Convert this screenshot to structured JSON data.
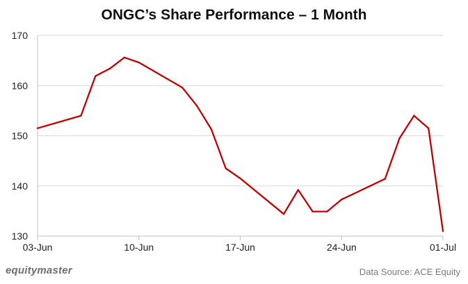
{
  "colors": {
    "line": "#c00000",
    "grid": "#d9d9d9",
    "axis": "#bfbfbf",
    "brand": "#6e6e6e",
    "source": "#7a7a7a"
  },
  "footer": {
    "brand": "equitymaster",
    "source": "Data Source: ACE Equity"
  },
  "chart_data": {
    "type": "line",
    "title": "ONGC’s Share Performance – 1 Month",
    "xlabel": "",
    "ylabel": "",
    "ylim": [
      130,
      170
    ],
    "yticks": [
      130,
      140,
      150,
      160,
      170
    ],
    "x_start": "03-Jun",
    "x_end": "01-Jul",
    "x_ticks": [
      {
        "label": "03-Jun",
        "day": 0
      },
      {
        "label": "10-Jun",
        "day": 7
      },
      {
        "label": "17-Jun",
        "day": 14
      },
      {
        "label": "24-Jun",
        "day": 21
      },
      {
        "label": "01-Jul",
        "day": 28
      }
    ],
    "grid": "horizontal",
    "legend": "none",
    "series": [
      {
        "x": [
          "03-Jun",
          "06-Jun",
          "07-Jun",
          "08-Jun",
          "09-Jun",
          "10-Jun",
          "13-Jun",
          "14-Jun",
          "15-Jun",
          "16-Jun",
          "17-Jun",
          "20-Jun",
          "21-Jun",
          "22-Jun",
          "23-Jun",
          "24-Jun",
          "27-Jun",
          "28-Jun",
          "29-Jun",
          "30-Jun",
          "01-Jul"
        ],
        "day": [
          0,
          3,
          4,
          5,
          6,
          7,
          10,
          11,
          12,
          13,
          14,
          17,
          18,
          19,
          20,
          21,
          24,
          25,
          26,
          27,
          28
        ],
        "values": [
          151.5,
          154.0,
          161.9,
          163.4,
          165.6,
          164.6,
          159.6,
          156.0,
          151.3,
          143.5,
          141.5,
          134.4,
          139.2,
          134.9,
          134.9,
          137.3,
          141.4,
          149.5,
          154.0,
          151.5,
          131.0
        ]
      }
    ]
  }
}
